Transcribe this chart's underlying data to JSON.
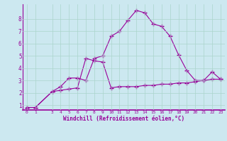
{
  "xlabel": "Windchill (Refroidissement éolien,°C)",
  "bg_color": "#cce8f0",
  "line_color": "#990099",
  "marker_color": "#990099",
  "grid_color": "#aad4cc",
  "xlim": [
    -0.5,
    23.5
  ],
  "ylim": [
    0.6,
    9.2
  ],
  "xticks": [
    0,
    1,
    3,
    4,
    5,
    6,
    7,
    8,
    9,
    10,
    11,
    12,
    13,
    14,
    15,
    16,
    17,
    18,
    19,
    20,
    21,
    22,
    23
  ],
  "yticks": [
    1,
    2,
    3,
    4,
    5,
    6,
    7,
    8
  ],
  "series1_x": [
    0,
    1,
    3,
    4,
    5,
    6,
    7,
    8,
    9,
    10,
    11,
    12,
    13,
    14,
    15,
    16,
    17,
    18,
    19,
    20,
    21,
    22,
    23
  ],
  "series1_y": [
    0.8,
    0.8,
    2.1,
    2.5,
    3.2,
    3.2,
    3.0,
    4.8,
    5.0,
    6.6,
    7.0,
    7.9,
    8.7,
    8.5,
    7.6,
    7.4,
    6.6,
    5.1,
    3.8,
    3.0,
    3.0,
    3.7,
    3.1
  ],
  "series2_x": [
    0,
    1,
    3,
    4,
    5,
    6,
    7,
    8,
    9,
    10,
    11,
    12,
    13,
    14,
    15,
    16,
    17,
    18,
    19,
    20,
    21,
    22,
    23
  ],
  "series2_y": [
    0.8,
    0.8,
    2.1,
    2.2,
    2.3,
    2.4,
    4.8,
    4.6,
    4.5,
    2.4,
    2.5,
    2.5,
    2.5,
    2.6,
    2.6,
    2.7,
    2.7,
    2.8,
    2.8,
    2.9,
    3.0,
    3.1,
    3.1
  ]
}
